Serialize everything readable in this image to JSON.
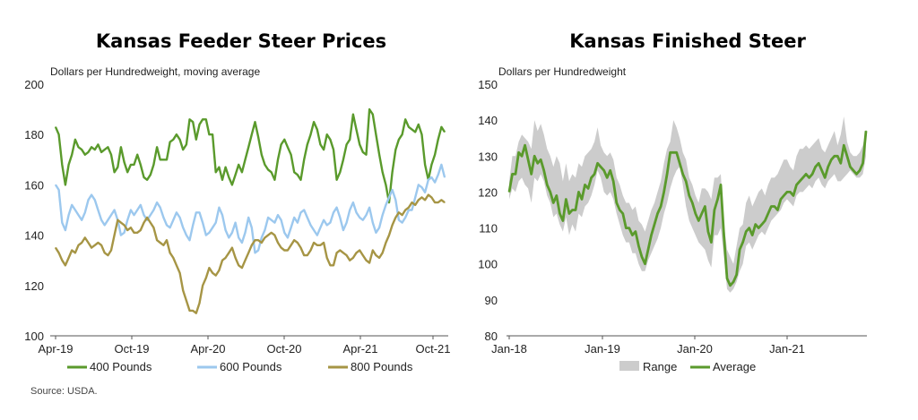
{
  "source": "Source: USDA.",
  "chart_data": [
    {
      "type": "line",
      "title": "Kansas Feeder Steer Prices",
      "unit_label": "Dollars per Hundredweight,  moving average",
      "ylim": [
        100,
        200
      ],
      "y_ticks": [
        "100",
        "120",
        "140",
        "160",
        "180",
        "200"
      ],
      "x_ticks": [
        "Apr-19",
        "Oct-19",
        "Apr-20",
        "Oct-20",
        "Apr-21",
        "Oct-21"
      ],
      "x_range": [
        "2019-04",
        "2021-10"
      ],
      "grid": false,
      "legend_position": "bottom",
      "series": [
        {
          "name": "400 Pounds",
          "color": "#5a9a2c",
          "values": [
            183,
            180,
            168,
            160,
            168,
            172,
            178,
            175,
            174,
            172,
            173,
            175,
            174,
            176,
            173,
            174,
            175,
            172,
            165,
            167,
            175,
            169,
            165,
            168,
            168,
            172,
            168,
            163,
            162,
            164,
            168,
            175,
            170,
            170,
            170,
            177,
            178,
            180,
            178,
            174,
            176,
            186,
            185,
            178,
            184,
            186,
            186,
            180,
            180,
            165,
            167,
            162,
            167,
            163,
            160,
            164,
            168,
            165,
            170,
            175,
            180,
            185,
            179,
            172,
            168,
            166,
            165,
            162,
            170,
            176,
            178,
            175,
            172,
            165,
            164,
            162,
            170,
            176,
            180,
            185,
            182,
            176,
            174,
            180,
            178,
            174,
            162,
            165,
            170,
            176,
            178,
            188,
            182,
            176,
            173,
            172,
            190,
            188,
            180,
            172,
            165,
            160,
            153,
            165,
            174,
            178,
            180,
            186,
            183,
            182,
            181,
            184,
            180,
            168,
            162,
            168,
            172,
            178,
            183,
            181
          ]
        },
        {
          "name": "600 Pounds",
          "color": "#9cc8ee",
          "values": [
            160,
            158,
            145,
            142,
            148,
            152,
            150,
            148,
            146,
            149,
            154,
            156,
            154,
            150,
            146,
            144,
            146,
            148,
            150,
            146,
            140,
            141,
            146,
            150,
            148,
            150,
            152,
            148,
            146,
            148,
            150,
            153,
            151,
            147,
            144,
            143,
            146,
            149,
            147,
            143,
            140,
            138,
            144,
            149,
            149,
            145,
            140,
            141,
            143,
            145,
            151,
            148,
            142,
            139,
            141,
            145,
            139,
            137,
            141,
            147,
            143,
            133,
            134,
            139,
            142,
            147,
            146,
            145,
            148,
            146,
            141,
            139,
            143,
            147,
            145,
            149,
            150,
            147,
            144,
            142,
            140,
            143,
            146,
            144,
            145,
            149,
            151,
            147,
            142,
            145,
            150,
            153,
            149,
            147,
            146,
            148,
            151,
            145,
            141,
            143,
            148,
            152,
            155,
            158,
            154,
            146,
            145,
            147,
            150,
            150,
            155,
            160,
            159,
            157,
            162,
            163,
            161,
            164,
            168,
            163
          ]
        },
        {
          "name": "800 Pounds",
          "color": "#a69545",
          "values": [
            135,
            133,
            130,
            128,
            131,
            134,
            133,
            136,
            137,
            139,
            137,
            135,
            136,
            137,
            136,
            133,
            132,
            134,
            140,
            146,
            145,
            144,
            142,
            143,
            141,
            141,
            142,
            145,
            147,
            145,
            143,
            138,
            137,
            136,
            138,
            133,
            131,
            128,
            125,
            118,
            114,
            110,
            110,
            109,
            113,
            120,
            123,
            127,
            125,
            124,
            126,
            130,
            131,
            133,
            135,
            131,
            128,
            127,
            130,
            133,
            136,
            138,
            138,
            137,
            139,
            140,
            141,
            140,
            137,
            135,
            134,
            134,
            136,
            138,
            137,
            135,
            132,
            132,
            134,
            137,
            136,
            136,
            137,
            131,
            128,
            128,
            133,
            134,
            133,
            132,
            130,
            131,
            133,
            134,
            132,
            130,
            129,
            134,
            132,
            131,
            133,
            137,
            140,
            144,
            147,
            149,
            148,
            150,
            151,
            153,
            152,
            154,
            155,
            154,
            156,
            155,
            153,
            153,
            154,
            153
          ]
        }
      ]
    },
    {
      "type": "line",
      "title": "Kansas Finished Steer",
      "unit_label": "Dollars per Hundredweight",
      "ylim": [
        80,
        150
      ],
      "y_ticks": [
        "80",
        "90",
        "100",
        "110",
        "120",
        "130",
        "140",
        "150"
      ],
      "x_ticks": [
        "Jan-18",
        "Jan-19",
        "Jan-20",
        "Jan-21"
      ],
      "x_range": [
        "2018-01",
        "2021-10"
      ],
      "grid": false,
      "legend_position": "bottom",
      "series": [
        {
          "name": "Range",
          "color": "#cccccc",
          "type": "area",
          "low": [
            118,
            121,
            120,
            123,
            124,
            122,
            121,
            117,
            124,
            123,
            125,
            123,
            119,
            117,
            113,
            114,
            111,
            109,
            113,
            108,
            111,
            109,
            114,
            113,
            116,
            117,
            119,
            122,
            126,
            124,
            120,
            119,
            120,
            118,
            114,
            111,
            108,
            106,
            106,
            103,
            103,
            100,
            98,
            98,
            101,
            103,
            105,
            107,
            110,
            114,
            117,
            121,
            124,
            126,
            127,
            122,
            116,
            112,
            110,
            108,
            106,
            105,
            104,
            101,
            99,
            108,
            108,
            110,
            102,
            93,
            92,
            93,
            95,
            98,
            100,
            105,
            106,
            104,
            106,
            108,
            109,
            108,
            110,
            112,
            113,
            114,
            115,
            117,
            118,
            117,
            116,
            119,
            120,
            120,
            121,
            122,
            121,
            123,
            124,
            122,
            121,
            123,
            124,
            125,
            123,
            123,
            124,
            125,
            126,
            125,
            124,
            124,
            125,
            130
          ],
          "high": [
            123,
            130,
            130,
            134,
            136,
            135,
            134,
            132,
            140,
            137,
            139,
            136,
            132,
            130,
            127,
            130,
            128,
            123,
            128,
            123,
            125,
            124,
            128,
            127,
            130,
            131,
            132,
            134,
            138,
            133,
            131,
            130,
            131,
            129,
            124,
            122,
            119,
            117,
            117,
            115,
            116,
            112,
            111,
            109,
            112,
            115,
            117,
            120,
            123,
            128,
            132,
            134,
            140,
            138,
            135,
            131,
            129,
            124,
            122,
            119,
            117,
            121,
            121,
            120,
            118,
            124,
            124,
            125,
            111,
            104,
            102,
            100,
            105,
            110,
            111,
            117,
            119,
            116,
            118,
            120,
            121,
            119,
            122,
            124,
            124,
            125,
            127,
            129,
            129,
            127,
            126,
            130,
            132,
            132,
            133,
            132,
            133,
            134,
            135,
            132,
            131,
            133,
            135,
            137,
            133,
            136,
            141,
            134,
            131,
            130,
            130,
            131,
            133,
            137
          ]
        },
        {
          "name": "Average",
          "color": "#5a9a2c",
          "values": [
            120,
            125,
            125,
            131,
            130,
            133,
            129,
            125,
            130,
            128,
            129,
            126,
            122,
            120,
            117,
            119,
            114,
            112,
            118,
            114,
            115,
            115,
            120,
            118,
            122,
            121,
            124,
            125,
            128,
            127,
            126,
            124,
            126,
            123,
            117,
            115,
            114,
            110,
            110,
            108,
            109,
            105,
            102,
            100,
            104,
            108,
            111,
            114,
            116,
            120,
            125,
            131,
            131,
            131,
            128,
            125,
            123,
            119,
            117,
            114,
            112,
            114,
            116,
            109,
            106,
            115,
            118,
            122,
            108,
            96,
            94,
            95,
            97,
            104,
            106,
            109,
            110,
            108,
            111,
            110,
            111,
            112,
            114,
            116,
            116,
            115,
            118,
            119,
            120,
            120,
            119,
            122,
            123,
            124,
            125,
            124,
            125,
            127,
            128,
            126,
            124,
            127,
            129,
            130,
            130,
            128,
            133,
            130,
            127,
            126,
            125,
            126,
            128,
            137
          ]
        }
      ]
    }
  ]
}
